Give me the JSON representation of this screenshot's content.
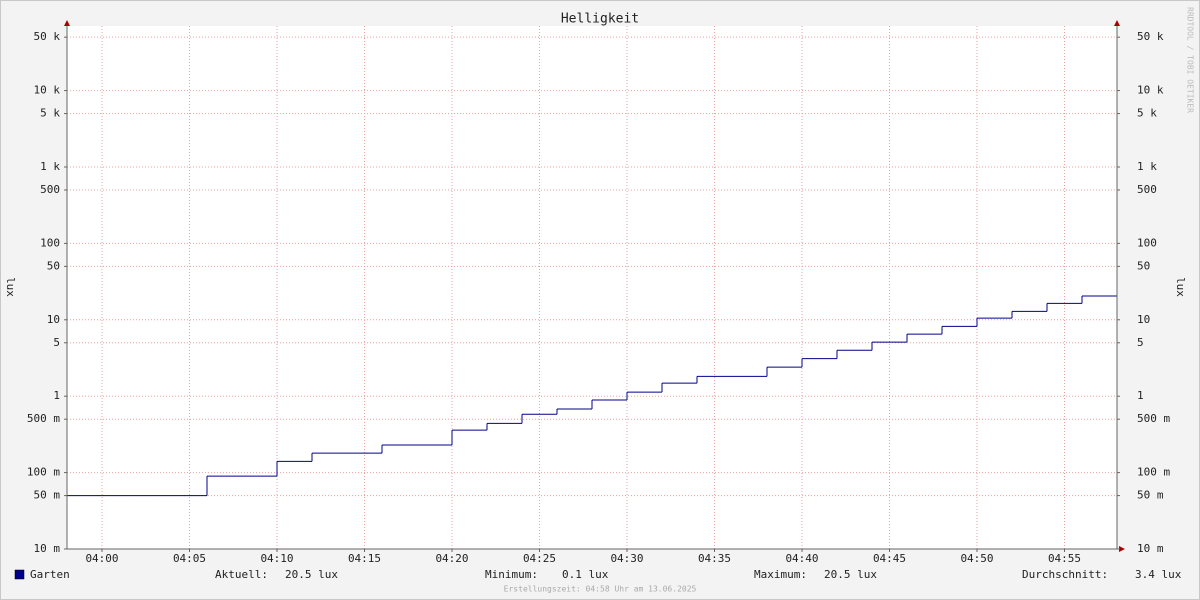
{
  "chart_data": {
    "type": "step",
    "title": "Helligkeit",
    "ylabel": "lux",
    "watermark": "RRDTOOL / TOBI OETIKER",
    "log_y": true,
    "grid": true,
    "xlim": [
      238,
      298
    ],
    "ylim": [
      0.01,
      70000
    ],
    "xticks": [
      {
        "value": 240,
        "label": "04:00"
      },
      {
        "value": 245,
        "label": "04:05"
      },
      {
        "value": 250,
        "label": "04:10"
      },
      {
        "value": 255,
        "label": "04:15"
      },
      {
        "value": 260,
        "label": "04:20"
      },
      {
        "value": 265,
        "label": "04:25"
      },
      {
        "value": 270,
        "label": "04:30"
      },
      {
        "value": 275,
        "label": "04:35"
      },
      {
        "value": 280,
        "label": "04:40"
      },
      {
        "value": 285,
        "label": "04:45"
      },
      {
        "value": 290,
        "label": "04:50"
      },
      {
        "value": 295,
        "label": "04:55"
      }
    ],
    "yticks": [
      {
        "value": 0.01,
        "label": "10 m"
      },
      {
        "value": 0.05,
        "label": "50 m"
      },
      {
        "value": 0.1,
        "label": "100 m"
      },
      {
        "value": 0.5,
        "label": "500 m"
      },
      1,
      5,
      10,
      50,
      100,
      500,
      {
        "value": 1000,
        "label": "1 k"
      },
      {
        "value": 5000,
        "label": "5 k"
      },
      {
        "value": 10000,
        "label": "10 k"
      },
      {
        "value": 50000,
        "label": "50 k"
      }
    ],
    "series": [
      {
        "name": "Garten",
        "color": "#00008b",
        "bins": [
          238,
          246,
          250,
          252,
          256,
          260,
          262,
          264,
          266,
          268,
          270,
          272,
          274,
          278,
          280,
          282,
          284,
          286,
          288,
          290,
          292,
          294,
          296,
          298
        ],
        "values": [
          0.05,
          0.09,
          0.14,
          0.18,
          0.23,
          0.36,
          0.44,
          0.58,
          0.68,
          0.89,
          1.13,
          1.48,
          1.82,
          2.4,
          3.1,
          4.0,
          5.1,
          6.5,
          8.2,
          10.5,
          12.9,
          16.4,
          20.5
        ]
      }
    ],
    "stats": [
      {
        "label": "Aktuell:",
        "text": "20.5 lux"
      },
      {
        "label": "Minimum:",
        "text": "0.1 lux"
      },
      {
        "label": "Maximum:",
        "text": "20.5 lux"
      },
      {
        "label": "Durchschnitt:",
        "text": "3.4 lux"
      }
    ],
    "footer": "Erstellungszeit: 04:58 Uhr am 13.06.2025"
  }
}
